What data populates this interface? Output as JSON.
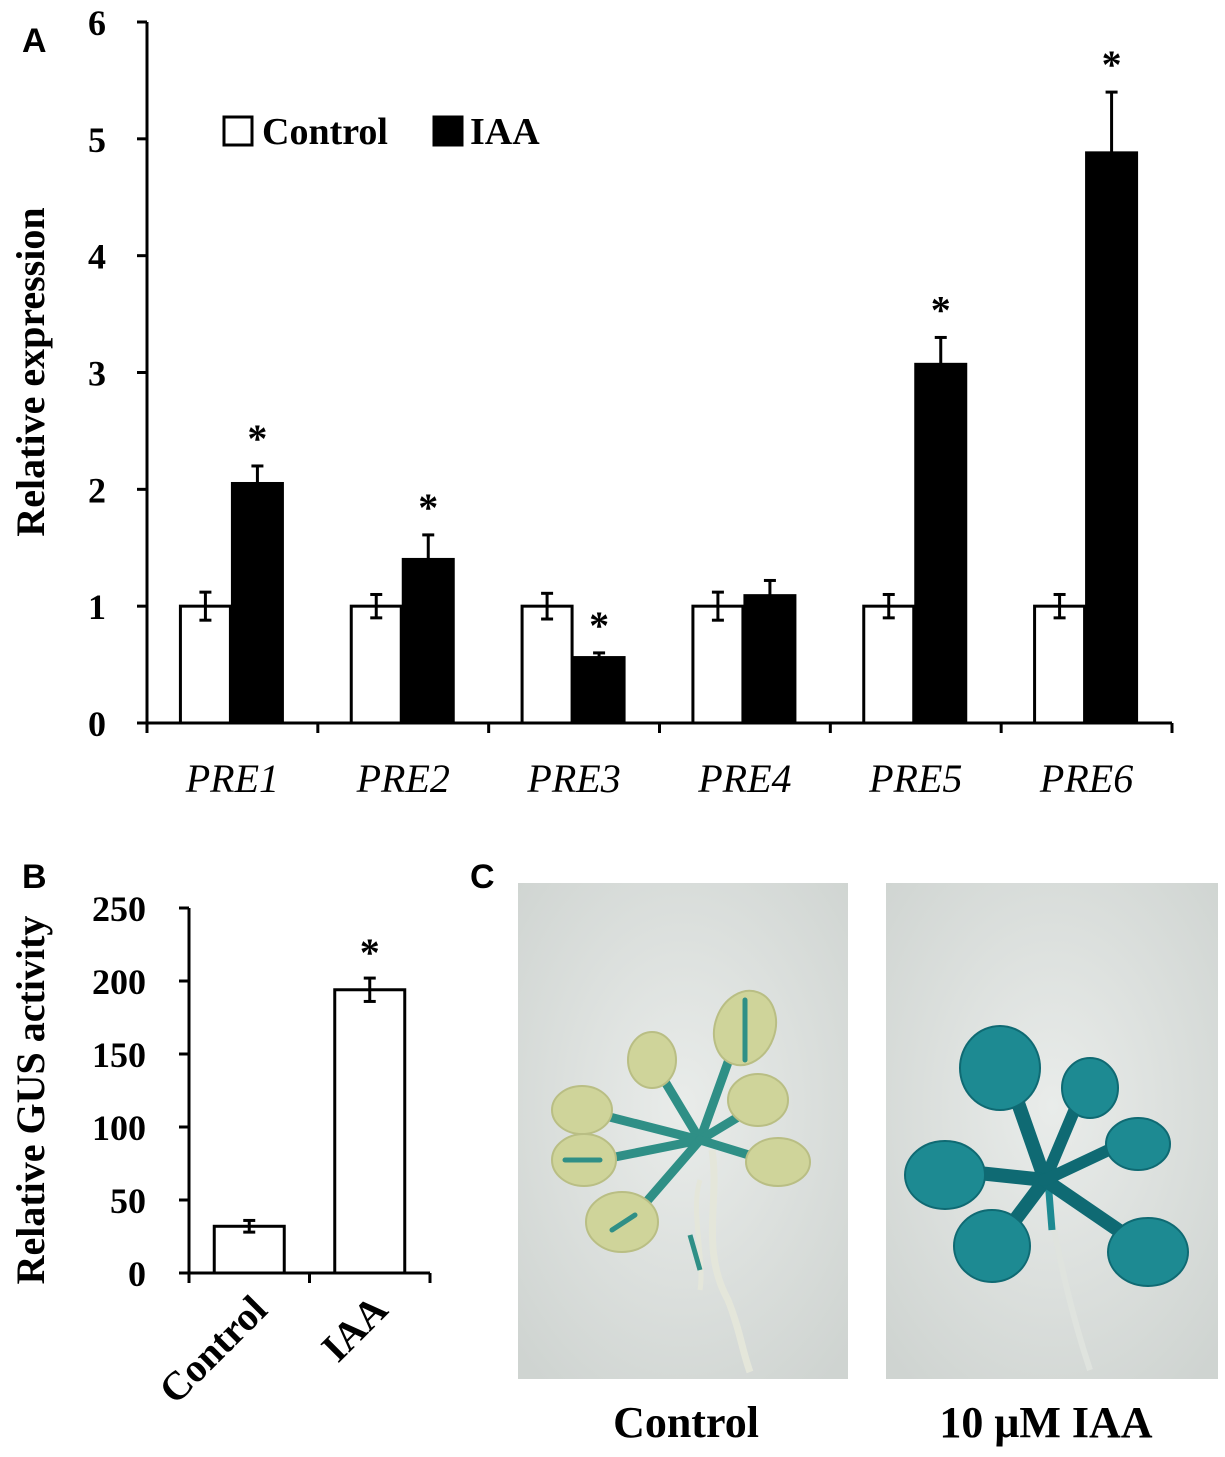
{
  "panels": {
    "a": "A",
    "b": "B",
    "c": "C"
  },
  "chart_data": [
    {
      "type": "bar",
      "ylabel": "Relative expression",
      "ylim": [
        0,
        6
      ],
      "yticks": [
        "0",
        "1",
        "2",
        "3",
        "4",
        "5",
        "6"
      ],
      "categories": [
        "PRE1",
        "PRE2",
        "PRE3",
        "PRE4",
        "PRE5",
        "PRE6"
      ],
      "legend_placement": "top-left",
      "series": [
        {
          "name": "Control",
          "fill": "#ffffff",
          "values": [
            1,
            1,
            1,
            1,
            1,
            1
          ],
          "errors": [
            0.12,
            0.1,
            0.11,
            0.12,
            0.1,
            0.1
          ]
        },
        {
          "name": "IAA",
          "fill": "#000000",
          "values": [
            2.05,
            1.4,
            0.56,
            1.09,
            3.07,
            4.88
          ],
          "errors": [
            0.15,
            0.21,
            0.04,
            0.13,
            0.23,
            0.52
          ]
        }
      ],
      "significance": [
        {
          "category": "PRE1",
          "label": "*"
        },
        {
          "category": "PRE2",
          "label": "*"
        },
        {
          "category": "PRE3",
          "label": "*"
        },
        {
          "category": "PRE5",
          "label": "*"
        },
        {
          "category": "PRE6",
          "label": "*"
        }
      ]
    },
    {
      "type": "bar",
      "ylabel": "Relative GUS activity",
      "ylim": [
        0,
        250
      ],
      "yticks": [
        "0",
        "50",
        "100",
        "150",
        "200",
        "250"
      ],
      "categories": [
        "Control",
        "IAA"
      ],
      "values": [
        32,
        194
      ],
      "errors": [
        4,
        8
      ],
      "significance": [
        {
          "category": "IAA",
          "label": "*"
        }
      ]
    }
  ],
  "photos": [
    {
      "label": "Control",
      "stain_color": "#cfd49a",
      "vein_color": "#2f8f86"
    },
    {
      "label": "10 μM IAA",
      "stain_color": "#1d8a92",
      "vein_color": "#0f6a73"
    }
  ]
}
